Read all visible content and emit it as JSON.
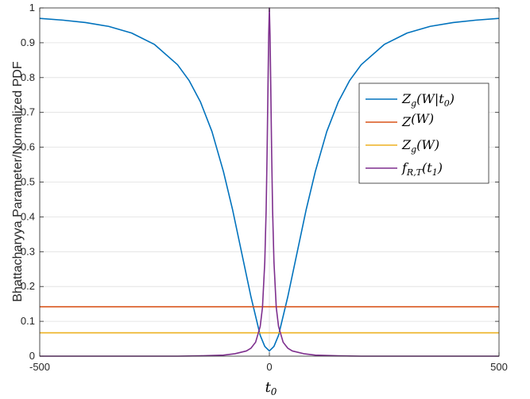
{
  "chart_data": {
    "type": "line",
    "ylabel": "Bhattacharyya Parameter/Normalized PDF",
    "xlabel": "t",
    "xlabel_sub": "0",
    "xlim": [
      -500,
      500
    ],
    "ylim": [
      0,
      1
    ],
    "xticks": [
      -500,
      0,
      500
    ],
    "yticks": [
      0,
      0.1,
      0.2,
      0.3,
      0.4,
      0.5,
      0.6,
      0.7,
      0.8,
      0.9,
      1
    ],
    "grid": true,
    "legend_position": "right",
    "series": [
      {
        "name": "Z_g(W|t_0)",
        "color": "#0072BD",
        "points": [
          [
            -500,
            0.97
          ],
          [
            -450,
            0.965
          ],
          [
            -400,
            0.958
          ],
          [
            -350,
            0.947
          ],
          [
            -300,
            0.928
          ],
          [
            -250,
            0.895
          ],
          [
            -200,
            0.837
          ],
          [
            -175,
            0.792
          ],
          [
            -150,
            0.73
          ],
          [
            -125,
            0.645
          ],
          [
            -100,
            0.53
          ],
          [
            -80,
            0.42
          ],
          [
            -60,
            0.295
          ],
          [
            -40,
            0.17
          ],
          [
            -20,
            0.06
          ],
          [
            -10,
            0.028
          ],
          [
            0,
            0.015
          ],
          [
            10,
            0.028
          ],
          [
            20,
            0.06
          ],
          [
            40,
            0.17
          ],
          [
            60,
            0.295
          ],
          [
            80,
            0.42
          ],
          [
            100,
            0.53
          ],
          [
            125,
            0.645
          ],
          [
            150,
            0.73
          ],
          [
            175,
            0.792
          ],
          [
            200,
            0.837
          ],
          [
            250,
            0.895
          ],
          [
            300,
            0.928
          ],
          [
            350,
            0.947
          ],
          [
            400,
            0.958
          ],
          [
            450,
            0.965
          ],
          [
            500,
            0.97
          ]
        ]
      },
      {
        "name": "Z(W)",
        "color": "#D95319",
        "points": [
          [
            -500,
            0.142
          ],
          [
            500,
            0.142
          ]
        ]
      },
      {
        "name": "Z_g(W)",
        "color": "#EDB120",
        "points": [
          [
            -500,
            0.067
          ],
          [
            500,
            0.067
          ]
        ]
      },
      {
        "name": "f_{R,T}(t_1)",
        "color": "#7E2F8E",
        "points": [
          [
            -500,
            0.0
          ],
          [
            -200,
            0.0
          ],
          [
            -150,
            0.001
          ],
          [
            -100,
            0.003
          ],
          [
            -75,
            0.007
          ],
          [
            -50,
            0.015
          ],
          [
            -40,
            0.023
          ],
          [
            -30,
            0.04
          ],
          [
            -20,
            0.085
          ],
          [
            -15,
            0.14
          ],
          [
            -10,
            0.27
          ],
          [
            -7,
            0.42
          ],
          [
            -5,
            0.58
          ],
          [
            -3,
            0.78
          ],
          [
            -1.5,
            0.92
          ],
          [
            0,
            1.0
          ],
          [
            1.5,
            0.92
          ],
          [
            3,
            0.78
          ],
          [
            5,
            0.58
          ],
          [
            7,
            0.42
          ],
          [
            10,
            0.27
          ],
          [
            15,
            0.14
          ],
          [
            20,
            0.085
          ],
          [
            30,
            0.04
          ],
          [
            40,
            0.023
          ],
          [
            50,
            0.015
          ],
          [
            75,
            0.007
          ],
          [
            100,
            0.003
          ],
          [
            150,
            0.001
          ],
          [
            200,
            0.0
          ],
          [
            500,
            0.0
          ]
        ]
      }
    ],
    "legend": [
      {
        "base": "Z",
        "sub": "g",
        "rest": "(W|t",
        "rest_sub": "0",
        "tail": ")"
      },
      {
        "base": "Z",
        "sub": "",
        "rest": "(W)",
        "rest_sub": "",
        "tail": ""
      },
      {
        "base": "Z",
        "sub": "g",
        "rest": "(W)",
        "rest_sub": "",
        "tail": ""
      },
      {
        "base": "f",
        "sub": "R,T",
        "rest": "(t",
        "rest_sub": "1",
        "tail": ")"
      }
    ]
  }
}
